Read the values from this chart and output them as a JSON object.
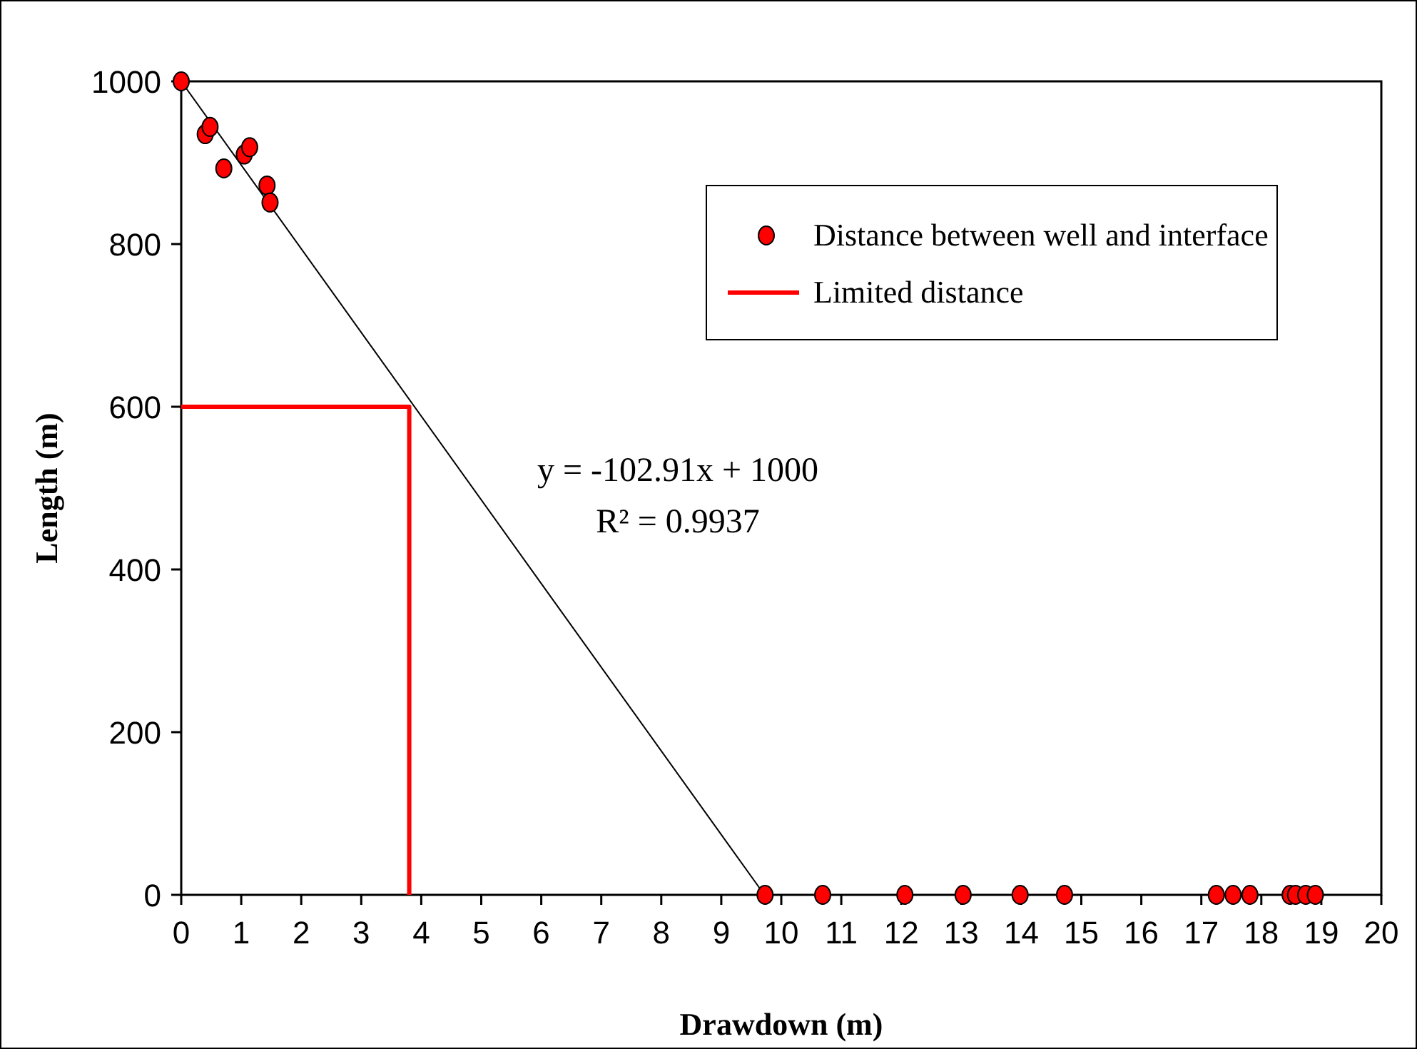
{
  "chart_data": {
    "type": "scatter",
    "xlabel": "Drawdown (m)",
    "ylabel": "Length (m)",
    "xlim": [
      0,
      20
    ],
    "xticks": [
      0,
      1,
      2,
      3,
      4,
      5,
      6,
      7,
      8,
      9,
      10,
      11,
      12,
      13,
      14,
      15,
      16,
      17,
      18,
      19,
      20
    ],
    "ylim": [
      0,
      1000
    ],
    "yticks": [
      0,
      200,
      400,
      600,
      800,
      1000
    ],
    "grid": false,
    "legend": "top right",
    "annotations": [
      "y = -102.91x + 1000",
      "R² = 0.9937"
    ],
    "series": [
      {
        "name": "Distance between well and interface",
        "marker": "circle",
        "color": "#ff0000",
        "x": [
          0,
          0.4,
          0.48,
          0.71,
          1.05,
          1.14,
          1.43,
          1.48,
          9.73,
          10.69,
          12.06,
          13.03,
          13.98,
          14.72,
          17.25,
          17.53,
          17.81,
          18.48,
          18.57,
          18.74,
          18.9
        ],
        "values": [
          1000,
          935,
          944,
          893,
          910,
          919,
          872,
          851,
          0,
          0,
          0,
          0,
          0,
          0,
          0,
          0,
          0,
          0,
          0,
          0,
          0
        ]
      },
      {
        "name": "Limited distance",
        "type": "line",
        "marker": "none",
        "color": "#ff0000",
        "x": [
          0,
          3.8,
          3.8
        ],
        "values": [
          600,
          600,
          0
        ]
      },
      {
        "type": "line",
        "marker": "none",
        "color": "#000000",
        "x": [
          0,
          9.72
        ],
        "values": [
          1000,
          0
        ]
      }
    ]
  }
}
